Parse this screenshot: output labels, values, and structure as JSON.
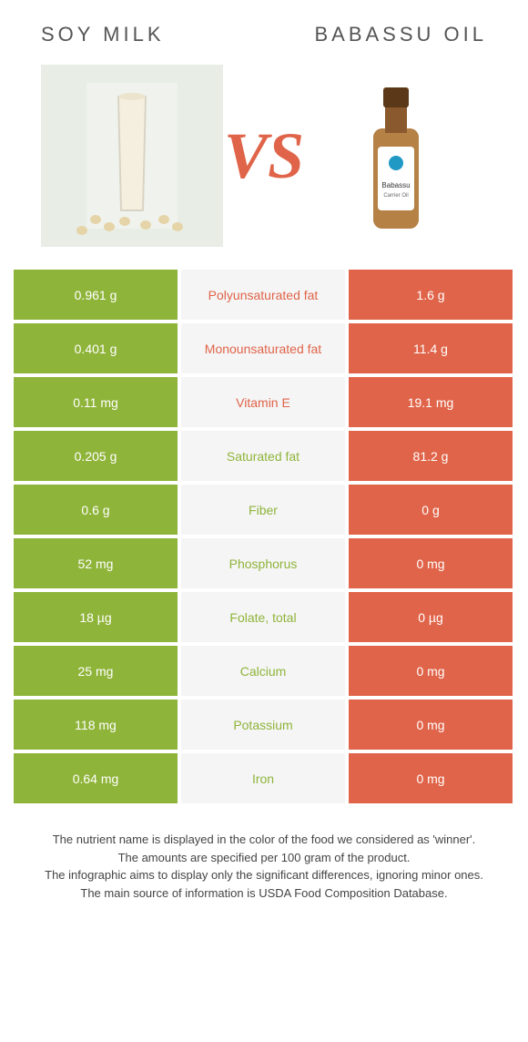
{
  "colors": {
    "left": "#8fb43a",
    "right": "#e06449",
    "mid_bg": "#f5f5f5",
    "white": "#ffffff",
    "vs": "#e06449"
  },
  "titles": {
    "left": "Soy milk",
    "right": "Babassu oil"
  },
  "vs": "VS",
  "rows": [
    {
      "left": "0.961 g",
      "label": "Polyunsaturated fat",
      "right": "1.6 g",
      "winner": "right"
    },
    {
      "left": "0.401 g",
      "label": "Monounsaturated fat",
      "right": "11.4 g",
      "winner": "right"
    },
    {
      "left": "0.11 mg",
      "label": "Vitamin E",
      "right": "19.1 mg",
      "winner": "right"
    },
    {
      "left": "0.205 g",
      "label": "Saturated fat",
      "right": "81.2 g",
      "winner": "left"
    },
    {
      "left": "0.6 g",
      "label": "Fiber",
      "right": "0 g",
      "winner": "left"
    },
    {
      "left": "52 mg",
      "label": "Phosphorus",
      "right": "0 mg",
      "winner": "left"
    },
    {
      "left": "18 µg",
      "label": "Folate, total",
      "right": "0 µg",
      "winner": "left"
    },
    {
      "left": "25 mg",
      "label": "Calcium",
      "right": "0 mg",
      "winner": "left"
    },
    {
      "left": "118 mg",
      "label": "Potassium",
      "right": "0 mg",
      "winner": "left"
    },
    {
      "left": "0.64 mg",
      "label": "Iron",
      "right": "0 mg",
      "winner": "left"
    }
  ],
  "footnotes": [
    "The nutrient name is displayed in the color of the food we considered as 'winner'.",
    "The amounts are specified per 100 gram of the product.",
    "The infographic aims to display only the significant differences, ignoring minor ones.",
    "The main source of information is USDA Food Composition Database."
  ]
}
